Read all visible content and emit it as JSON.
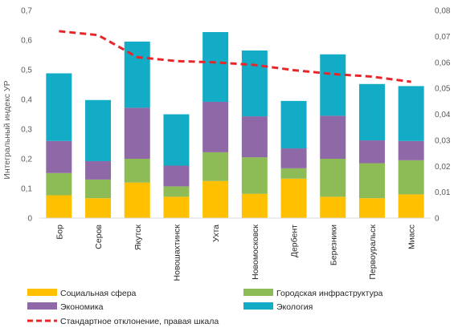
{
  "chart_data": {
    "type": "bar",
    "stacked": true,
    "categories": [
      "Бор",
      "Серов",
      "Якутск",
      "Новошахтинск",
      "Ухта",
      "Новомосковск",
      "Дербент",
      "Березники",
      "Первоуральск",
      "Миасс"
    ],
    "series": [
      {
        "name": "Социальная сфера",
        "color": "#FFC000",
        "values": [
          0.077,
          0.067,
          0.12,
          0.072,
          0.125,
          0.082,
          0.133,
          0.072,
          0.067,
          0.08
        ]
      },
      {
        "name": "Городская инфраструктура",
        "color": "#8DBB56",
        "values": [
          0.075,
          0.063,
          0.08,
          0.035,
          0.097,
          0.123,
          0.035,
          0.128,
          0.118,
          0.115
        ]
      },
      {
        "name": "Экономика",
        "color": "#8F68A8",
        "values": [
          0.108,
          0.062,
          0.172,
          0.07,
          0.17,
          0.138,
          0.067,
          0.145,
          0.077,
          0.065
        ]
      },
      {
        "name": "Экология",
        "color": "#12ACC6",
        "values": [
          0.228,
          0.206,
          0.223,
          0.173,
          0.235,
          0.222,
          0.16,
          0.207,
          0.19,
          0.185
        ]
      }
    ],
    "line_series": {
      "name": "Стандартное отклонение, правая шкала",
      "color": "#E8262A",
      "axis": "right",
      "values": [
        0.072,
        0.0705,
        0.062,
        0.0605,
        0.06,
        0.059,
        0.057,
        0.0555,
        0.0545,
        0.0525
      ]
    },
    "ylabel": "Интегральный индекс УР",
    "ylim": [
      0,
      0.7
    ],
    "yticks": [
      "0",
      "0,1",
      "0,2",
      "0,3",
      "0,4",
      "0,5",
      "0,6",
      "0,7"
    ],
    "y2lim": [
      0,
      0.08
    ],
    "y2ticks": [
      "0",
      "0,01",
      "0,02",
      "0,03",
      "0,04",
      "0,05",
      "0,06",
      "0,07",
      "0,08"
    ],
    "grid": false,
    "legend_position": "bottom"
  }
}
